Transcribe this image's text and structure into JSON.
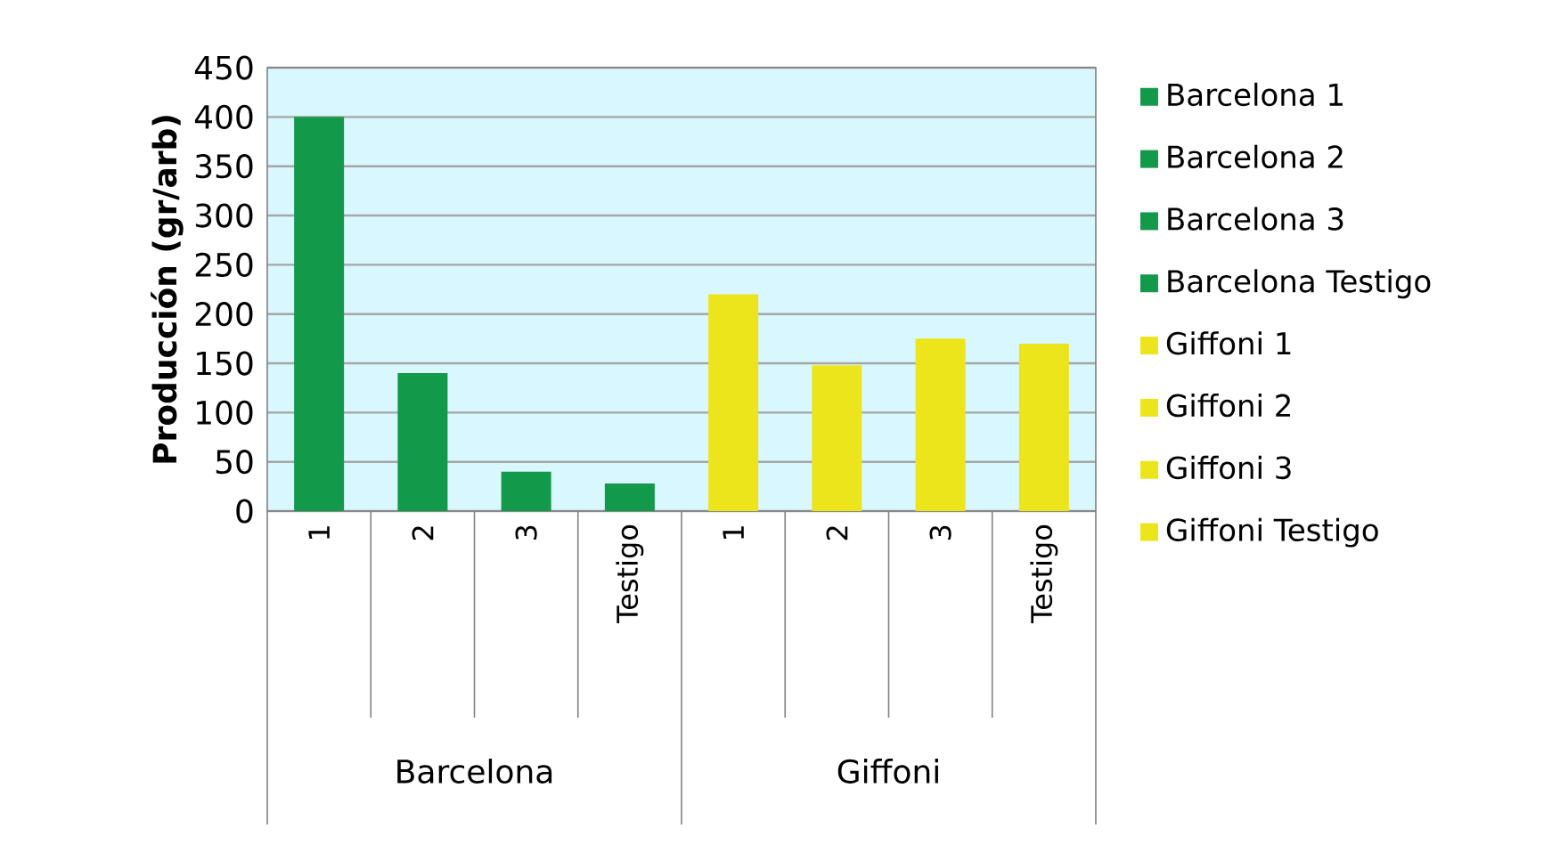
{
  "chart_data": {
    "type": "bar",
    "ylabel": "Producción (gr/arb)",
    "categories": [
      "1",
      "2",
      "3",
      "Testigo",
      "1",
      "2",
      "3",
      "Testigo"
    ],
    "series": [
      {
        "name": "Barcelona 1",
        "color": "#12994a",
        "values": [
          400,
          null,
          null,
          null,
          null,
          null,
          null,
          null
        ]
      },
      {
        "name": "Barcelona 2",
        "color": "#12994a",
        "values": [
          null,
          140,
          null,
          null,
          null,
          null,
          null,
          null
        ]
      },
      {
        "name": "Barcelona 3",
        "color": "#12994a",
        "values": [
          null,
          null,
          40,
          null,
          null,
          null,
          null,
          null
        ]
      },
      {
        "name": "Barcelona Testigo",
        "color": "#12994a",
        "values": [
          null,
          null,
          null,
          28,
          null,
          null,
          null,
          null
        ]
      },
      {
        "name": "Giffoni 1",
        "color": "#ece51c",
        "values": [
          null,
          null,
          null,
          null,
          220,
          null,
          null,
          null
        ]
      },
      {
        "name": "Giffoni 2",
        "color": "#ece51c",
        "values": [
          null,
          null,
          null,
          null,
          null,
          148,
          null,
          null
        ]
      },
      {
        "name": "Giffoni 3",
        "color": "#ece51c",
        "values": [
          null,
          null,
          null,
          null,
          null,
          null,
          175,
          null
        ]
      },
      {
        "name": "Giffoni Testigo",
        "color": "#ece51c",
        "values": [
          null,
          null,
          null,
          null,
          null,
          null,
          null,
          170
        ]
      }
    ],
    "annotations": [
      "Barcelona",
      "Giffoni"
    ],
    "ylim": [
      0,
      450
    ],
    "yticks": [
      0,
      50,
      100,
      150,
      200,
      250,
      300,
      350,
      400,
      450
    ],
    "grid": "y",
    "legend": "right"
  }
}
